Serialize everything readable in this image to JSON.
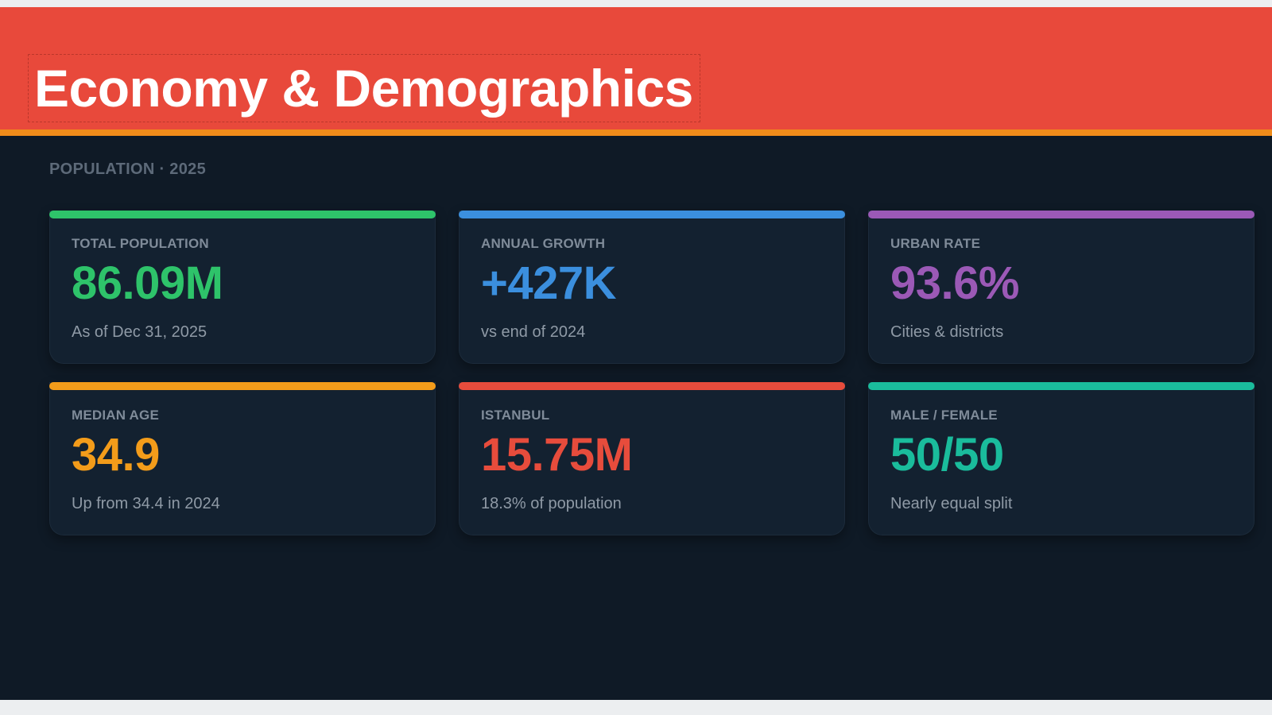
{
  "header": {
    "title": "Economy & Demographics"
  },
  "section": {
    "label": "POPULATION · 2025"
  },
  "colors": {
    "header_bg": "#e8493b",
    "header_rule": "#f08c1a",
    "background": "#0f1a26"
  },
  "cards": [
    {
      "label": "TOTAL POPULATION",
      "value": "86.09M",
      "sub": "As of Dec 31, 2025",
      "color": "#2ec36a"
    },
    {
      "label": "ANNUAL GROWTH",
      "value": "+427K",
      "sub": "vs end of 2024",
      "color": "#3b8fde"
    },
    {
      "label": "URBAN RATE",
      "value": "93.6%",
      "sub": "Cities & districts",
      "color": "#9b59b6"
    },
    {
      "label": "MEDIAN AGE",
      "value": "34.9",
      "sub": "Up from 34.4 in 2024",
      "color": "#f39c1a"
    },
    {
      "label": "ISTANBUL",
      "value": "15.75M",
      "sub": "18.3% of population",
      "color": "#e74c3c"
    },
    {
      "label": "MALE / FEMALE",
      "value": "50/50",
      "sub": "Nearly equal split",
      "color": "#1abc9c"
    }
  ]
}
